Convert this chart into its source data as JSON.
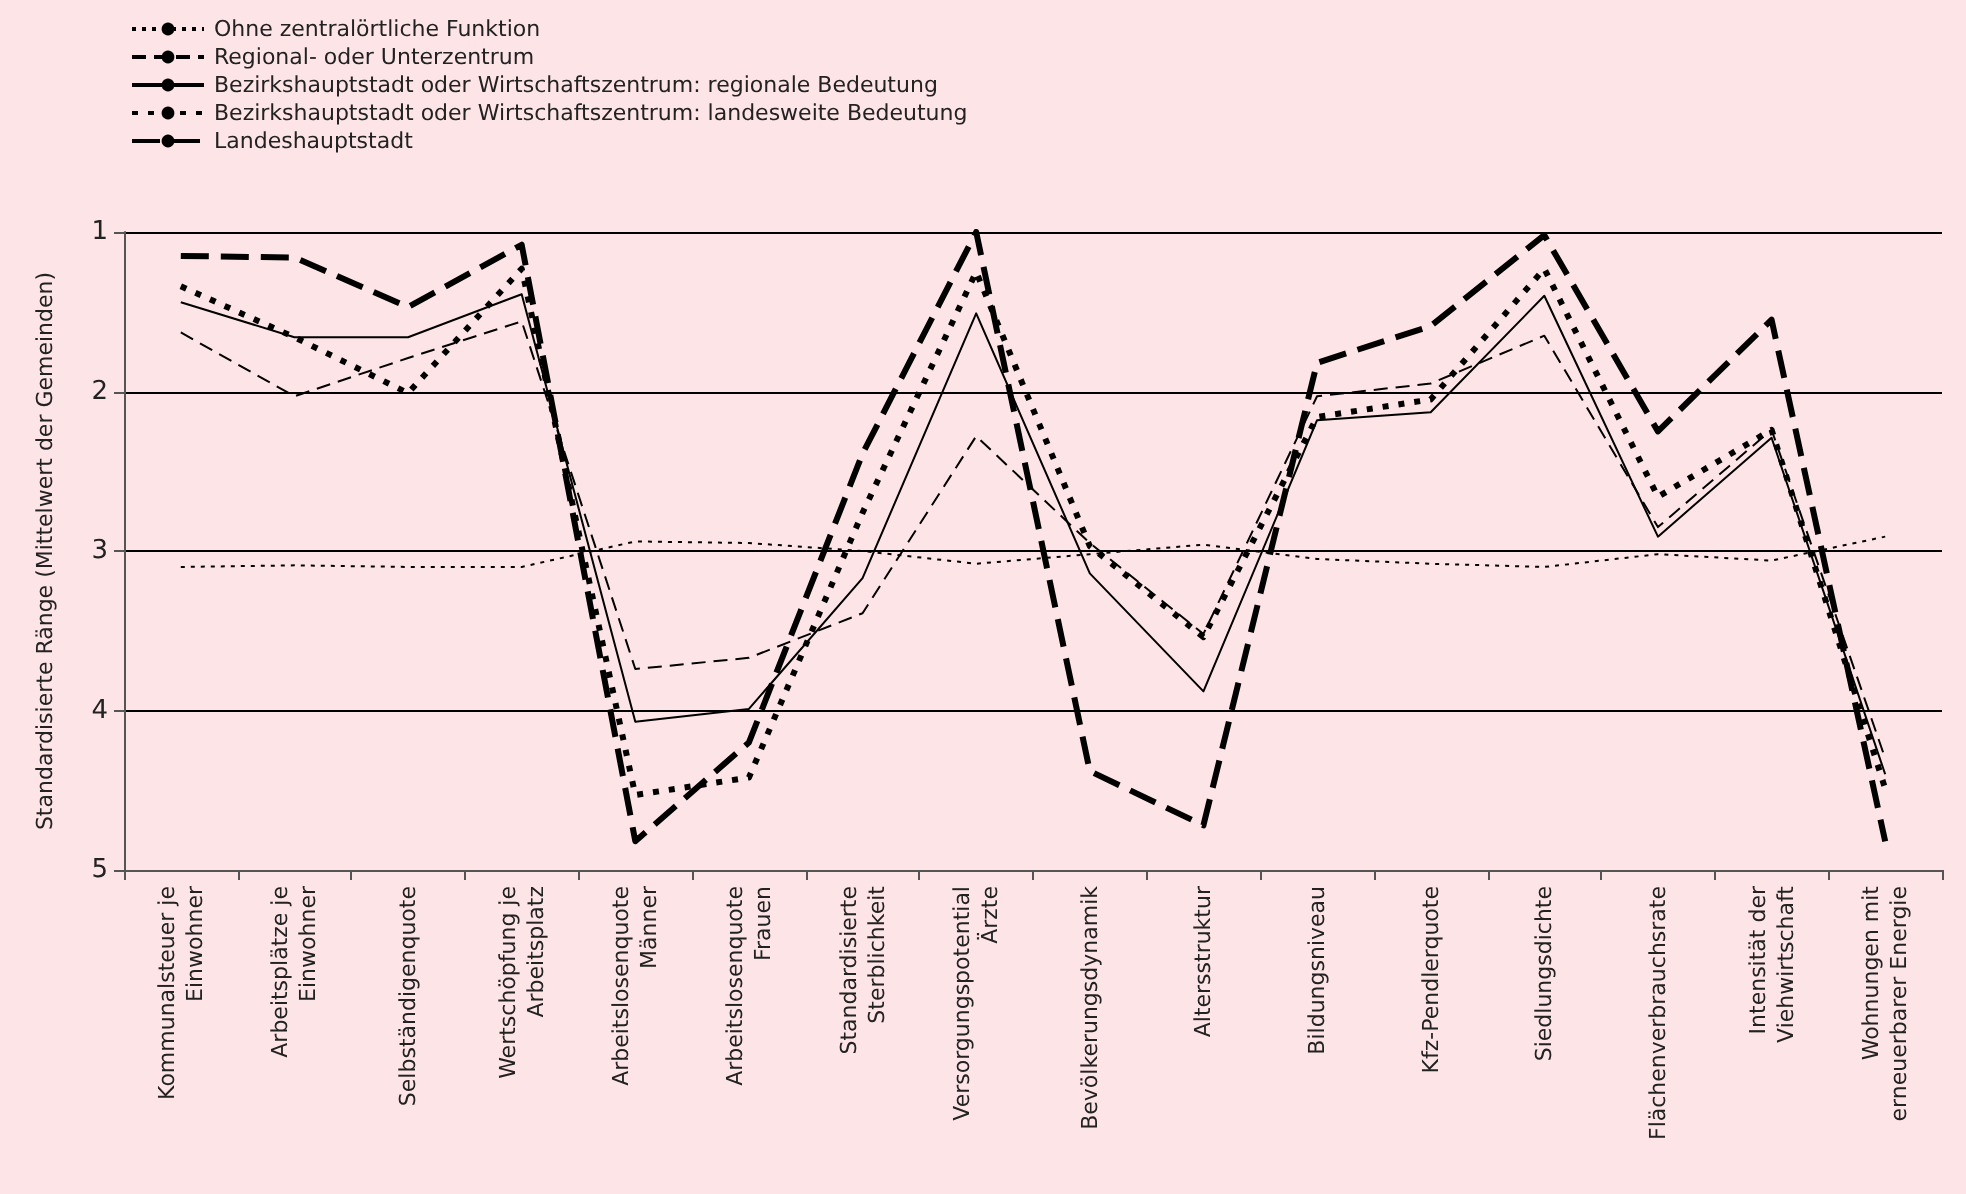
{
  "chart_data": {
    "type": "line",
    "ylabel": "Standardisierte Ränge (Mittelwert der Gemeinden)",
    "categories": [
      "Kommunalsteuer je\nEinwohner",
      "Arbeitsplätze je\nEinwohner",
      "Selbständigenquote",
      "Wertschöpfung je\nArbeitsplatz",
      "Arbeitslosenquote\nMänner",
      "Arbeitslosenquote\nFrauen",
      "Standardisierte\nSterblichkeit",
      "Versorgungspotential\nÄrzte",
      "Bevölkerungsdynamik",
      "Altersstruktur",
      "Bildungsniveau",
      "Kfz-Pendlerquote",
      "Siedlungsdichte",
      "Flächenverbrauchsrate",
      "Intensität der\nViehwirtschaft",
      "Wohnungen mit\nerneuerbarer Energie"
    ],
    "series": [
      {
        "name": "Ohne zentralörtliche Funktion",
        "color": "#000000",
        "line_style": "dotted",
        "values": [
          3.1,
          3.09,
          3.1,
          3.1,
          2.94,
          2.95,
          3.0,
          3.08,
          3.02,
          2.96,
          3.05,
          3.08,
          3.1,
          3.02,
          3.06,
          2.91
        ]
      },
      {
        "name": "Regional- oder Unterzentrum",
        "color": "#000000",
        "line_style": "dashed",
        "values": [
          1.63,
          2.03,
          1.79,
          1.56,
          3.74,
          3.67,
          3.39,
          2.28,
          2.95,
          3.52,
          2.03,
          1.95,
          1.65,
          2.85,
          2.24,
          4.3
        ]
      },
      {
        "name": "Bezirkshauptstadt oder Wirtschaftszentrum: regionale Bedeutung",
        "color": "#000000",
        "line_style": "solid",
        "values": [
          1.44,
          1.66,
          1.66,
          1.39,
          4.07,
          3.99,
          3.17,
          1.51,
          3.14,
          3.88,
          2.18,
          2.13,
          1.4,
          2.91,
          2.29,
          4.4
        ]
      },
      {
        "name": "Bezirkshauptstadt oder Wirtschaftszentrum: landesweite Bedeutung",
        "color": "#000000",
        "line_style": "dotted",
        "values": [
          1.34,
          1.66,
          2.01,
          1.23,
          4.53,
          4.42,
          2.76,
          1.25,
          2.97,
          3.54,
          2.16,
          2.05,
          1.23,
          2.66,
          2.24,
          4.49
        ]
      },
      {
        "name": "Landeshauptstadt",
        "color": "#000000",
        "line_style": "dashed",
        "values": [
          1.15,
          1.16,
          1.47,
          1.08,
          4.82,
          4.2,
          2.39,
          1.0,
          4.38,
          4.72,
          1.82,
          1.59,
          1.02,
          2.25,
          1.55,
          4.82
        ]
      }
    ],
    "ylim": [
      5,
      1
    ],
    "yticks": [
      1,
      2,
      3,
      4,
      5
    ],
    "grid": "y",
    "legend": "top left",
    "marker": "none"
  }
}
